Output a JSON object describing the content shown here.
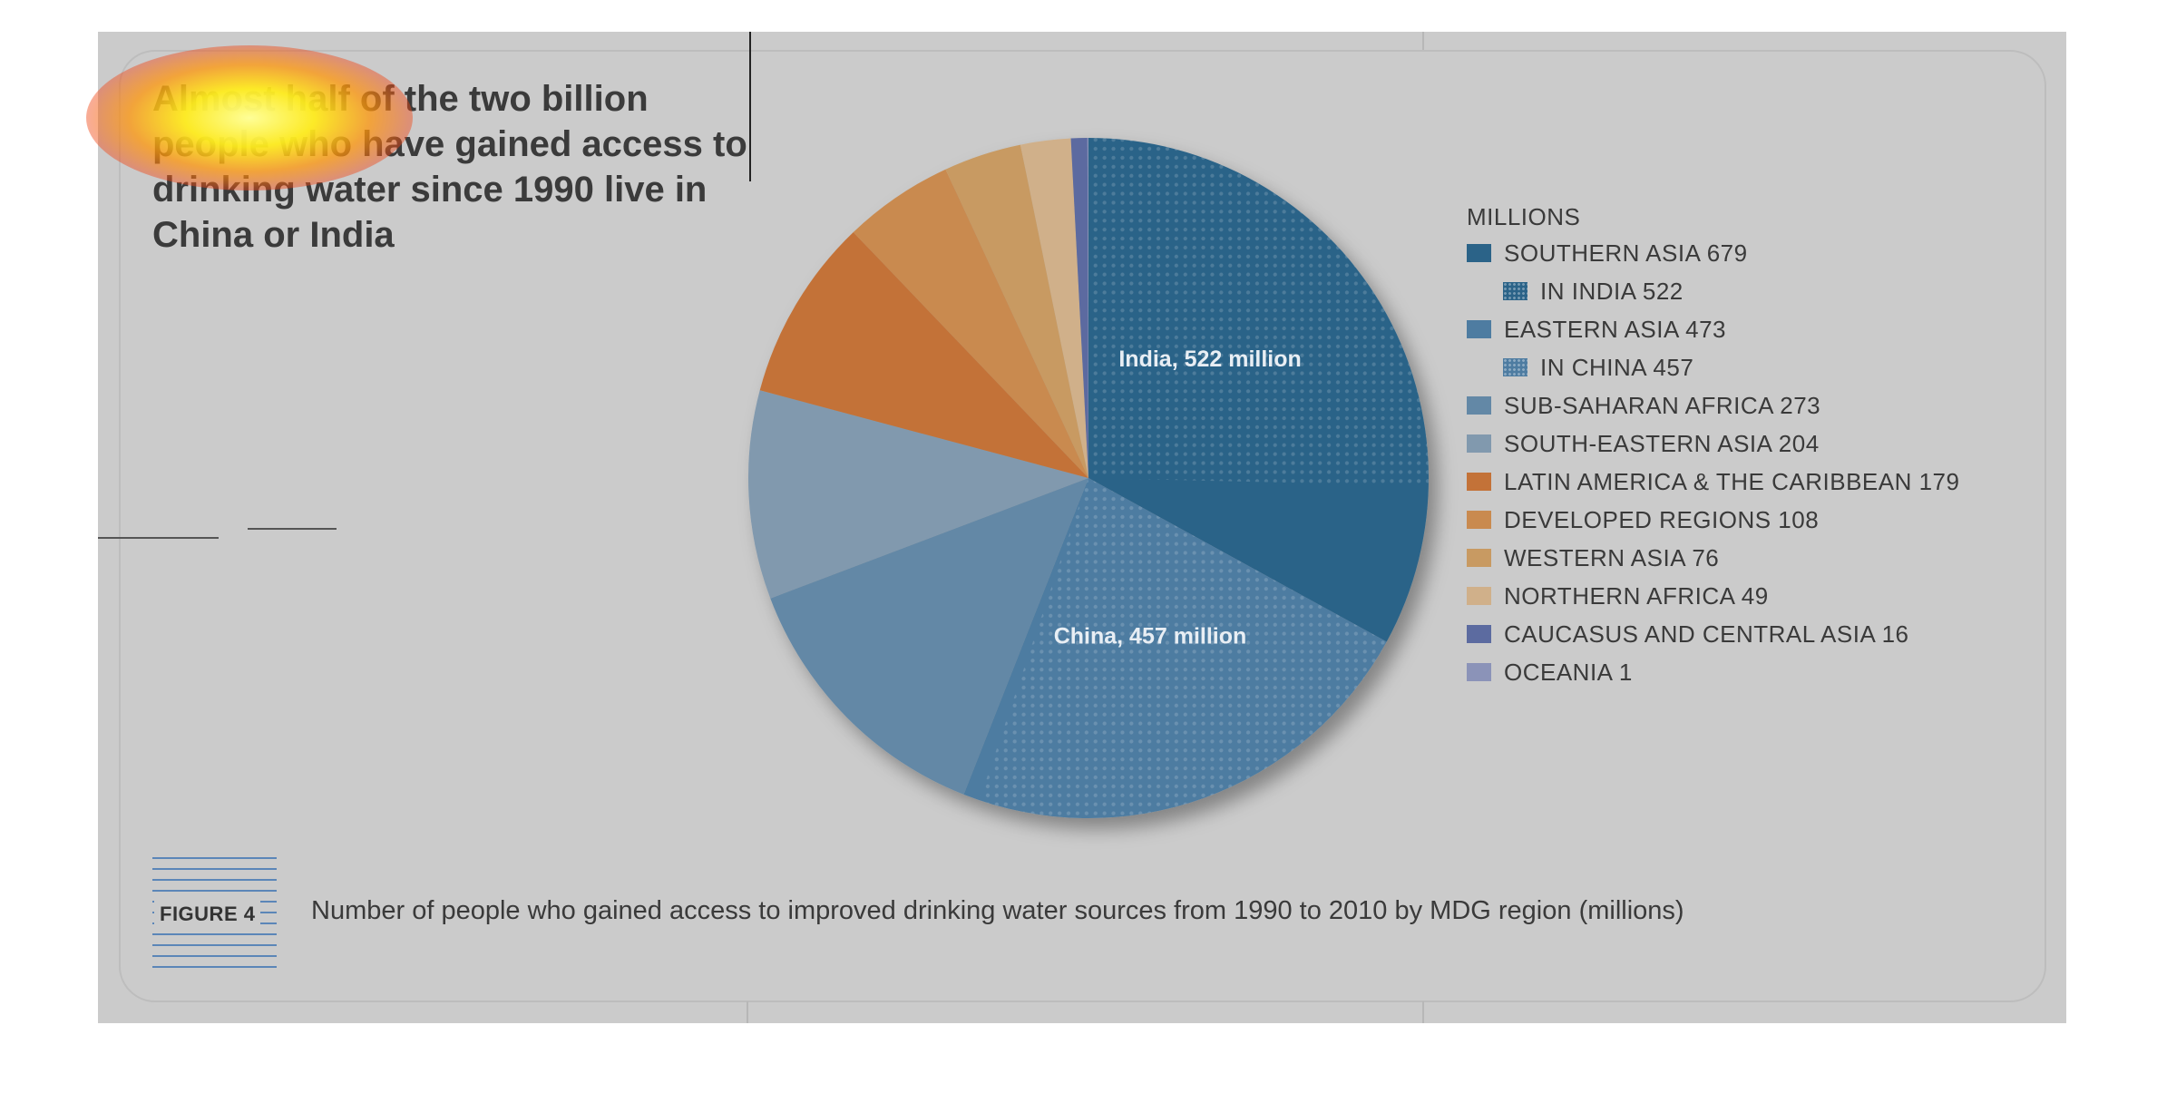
{
  "headline": "Almost half of the two billion people who have gained access to drinking water since 1990 live in China or India",
  "legend_title": "MILLIONS",
  "figure_label": "FIGURE 4",
  "caption": "Number of people who gained access to improved drinking water sources from 1990 to 2010 by MDG region (millions)",
  "chart_data": {
    "type": "pie",
    "title": "Almost half of the two billion people who have gained access to drinking water since 1990 live in China or India",
    "unit": "MILLIONS",
    "slices": [
      {
        "name": "SOUTHERN ASIA",
        "value": 679,
        "color": "#2b6388"
      },
      {
        "name": "EASTERN ASIA",
        "value": 473,
        "color": "#4e7ca1"
      },
      {
        "name": "SUB-SAHARAN AFRICA",
        "value": 273,
        "color": "#6388a6"
      },
      {
        "name": "SOUTH-EASTERN ASIA",
        "value": 204,
        "color": "#8199ae"
      },
      {
        "name": "LATIN AMERICA & THE CARIBBEAN",
        "value": 179,
        "color": "#c37238"
      },
      {
        "name": "DEVELOPED REGIONS",
        "value": 108,
        "color": "#c98a4f"
      },
      {
        "name": "WESTERN ASIA",
        "value": 76,
        "color": "#c89a62"
      },
      {
        "name": "NORTHERN AFRICA",
        "value": 49,
        "color": "#d0b08a"
      },
      {
        "name": "CAUCASUS AND CENTRAL ASIA",
        "value": 16,
        "color": "#5c6ba0"
      },
      {
        "name": "OCEANIA",
        "value": 1,
        "color": "#8b93b8"
      }
    ],
    "sub_slices": [
      {
        "name": "IN INDIA",
        "parent": "SOUTHERN ASIA",
        "value": 522,
        "label": "India, 522 million"
      },
      {
        "name": "IN CHINA",
        "parent": "EASTERN ASIA",
        "value": 457,
        "label": "China, 457 million"
      }
    ]
  },
  "legend": [
    {
      "label": "SOUTHERN ASIA 679",
      "color": "#2b6388",
      "dotted": false,
      "indent": false
    },
    {
      "label": "IN INDIA 522",
      "color": "#2b6388",
      "dotted": true,
      "indent": true
    },
    {
      "label": "EASTERN ASIA 473",
      "color": "#4e7ca1",
      "dotted": false,
      "indent": false
    },
    {
      "label": "IN CHINA 457",
      "color": "#4e7ca1",
      "dotted": true,
      "indent": true
    },
    {
      "label": "SUB-SAHARAN AFRICA 273",
      "color": "#6388a6",
      "dotted": false,
      "indent": false
    },
    {
      "label": "SOUTH-EASTERN ASIA 204",
      "color": "#8199ae",
      "dotted": false,
      "indent": false
    },
    {
      "label": "LATIN AMERICA & THE CARIBBEAN 179",
      "color": "#c37238",
      "dotted": false,
      "indent": false
    },
    {
      "label": "DEVELOPED REGIONS 108",
      "color": "#c98a4f",
      "dotted": false,
      "indent": false
    },
    {
      "label": "WESTERN ASIA 76",
      "color": "#c89a62",
      "dotted": false,
      "indent": false
    },
    {
      "label": "NORTHERN AFRICA 49",
      "color": "#d0b08a",
      "dotted": false,
      "indent": false
    },
    {
      "label": "CAUCASUS AND CENTRAL ASIA 16",
      "color": "#5c6ba0",
      "dotted": false,
      "indent": false
    },
    {
      "label": "OCEANIA 1",
      "color": "#8b93b8",
      "dotted": false,
      "indent": false
    }
  ]
}
